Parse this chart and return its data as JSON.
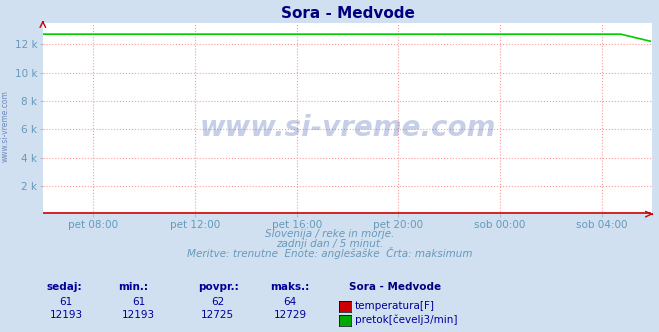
{
  "title": "Sora - Medvode",
  "title_color": "#000080",
  "bg_color": "#d0e0f0",
  "plot_bg_color": "#ffffff",
  "grid_color": "#ff9999",
  "x_tick_labels": [
    "pet 08:00",
    "pet 12:00",
    "pet 16:00",
    "pet 20:00",
    "sob 00:00",
    "sob 04:00"
  ],
  "x_tick_positions": [
    0.083,
    0.25,
    0.417,
    0.583,
    0.75,
    0.917
  ],
  "y_tick_labels": [
    "2 k",
    "4 k",
    "6 k",
    "8 k",
    "10 k",
    "12 k"
  ],
  "y_tick_values": [
    2000,
    4000,
    6000,
    8000,
    10000,
    12000
  ],
  "ylim": [
    0,
    13500
  ],
  "n_points": 288,
  "temp_value": 61,
  "temp_min": 61,
  "temp_avg": 62,
  "temp_max": 64,
  "flow_value": 12193,
  "flow_min": 12193,
  "flow_avg": 12725,
  "flow_max": 12729,
  "temp_color": "#cc0000",
  "flow_color": "#00aa00",
  "flow_line_color": "#00cc00",
  "temp_line_color": "#cc0000",
  "arrow_color": "#cc0000",
  "subtitle1": "Slovenija / reke in morje.",
  "subtitle2": "zadnji dan / 5 minut.",
  "subtitle3": "Meritve: trenutne  Enote: anglešaške  Črta: maksimum",
  "subtitle_color": "#6699bb",
  "legend_title": "Sora - Medvode",
  "legend_title_color": "#000080",
  "legend_label1": "temperatura[F]",
  "legend_label2": "pretok[čevelj3/min]",
  "table_headers": [
    "sedaj:",
    "min.:",
    "povpr.:",
    "maks.:"
  ],
  "table_header_color": "#000099",
  "table_value_color": "#000099",
  "watermark": "www.si-vreme.com",
  "watermark_color": "#4466aa",
  "left_text": "www.si-vreme.com"
}
